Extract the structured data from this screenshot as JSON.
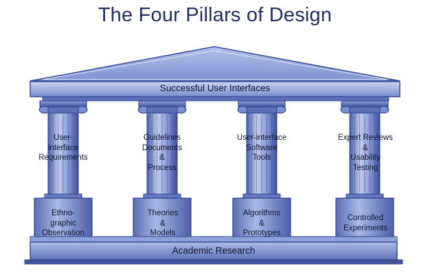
{
  "title": "The Four Pillars of Design",
  "roof_label": "Successful User Interfaces",
  "base_label": "Academic Research",
  "pillars": [
    {
      "shaft": [
        "User-",
        "interface",
        "Requirements"
      ],
      "plinth": [
        "Ethno-",
        "graphic",
        "Observation"
      ]
    },
    {
      "shaft": [
        "Guidelines",
        "Documents",
        "&",
        "Process"
      ],
      "plinth": [
        "Theories",
        "&",
        "Models"
      ]
    },
    {
      "shaft": [
        "User-interface",
        "Software",
        "Tools"
      ],
      "plinth": [
        "Algorithms",
        "&",
        "Prototypes"
      ]
    },
    {
      "shaft": [
        "Expert Reviews",
        "&",
        "Usability",
        "Testing"
      ],
      "plinth": [
        "Controlled",
        "Experiments"
      ]
    }
  ],
  "colors": {
    "title": "#232f5e",
    "stone_light": "#c3cdec",
    "stone_mid": "#7d8fd0",
    "stone_dark": "#384c9a",
    "text": "#0f1532"
  }
}
